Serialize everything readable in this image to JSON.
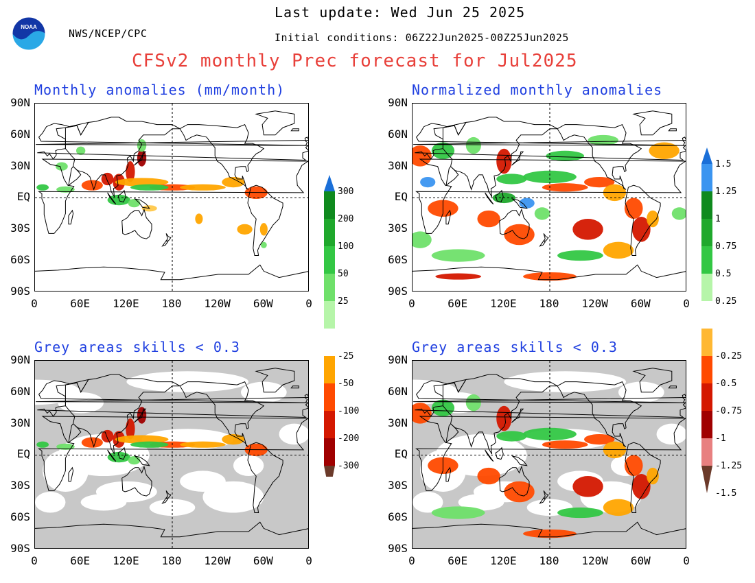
{
  "header": {
    "org": "NWS/NCEP/CPC",
    "last_update": "Last update: Wed Jun 25 2025",
    "init_conditions": "Initial conditions: 06Z22Jun2025-00Z25Jun2025",
    "title": "CFSv2 monthly Prec forecast for Jul2025"
  },
  "panels": [
    {
      "id": "tl",
      "title": "Monthly anomalies (mm/month)",
      "grey": false
    },
    {
      "id": "tr",
      "title": "Normalized monthly anomalies",
      "grey": false
    },
    {
      "id": "bl",
      "title": "Grey areas skills < 0.3",
      "grey": true
    },
    {
      "id": "br",
      "title": "Grey areas skills < 0.3",
      "grey": true
    }
  ],
  "axes": {
    "lat_labels": [
      "90N",
      "60N",
      "30N",
      "EQ",
      "30S",
      "60S",
      "90S"
    ],
    "lon_labels": [
      "0",
      "60E",
      "120E",
      "180",
      "120W",
      "60W",
      "0"
    ]
  },
  "colorbar_left": {
    "labels": [
      "300",
      "200",
      "100",
      "50",
      "25",
      "-25",
      "-50",
      "-100",
      "-200",
      "-300"
    ],
    "colors": [
      "#1a6fd8",
      "#0f8a1e",
      "#1fa82c",
      "#33c744",
      "#6fe06a",
      "#b6f5a9",
      "#ffffff",
      "#ffa500",
      "#ff4a00",
      "#d41800",
      "#a00000",
      "#6b3a2a"
    ]
  },
  "colorbar_right": {
    "labels": [
      "1.5",
      "1.25",
      "1",
      "0.75",
      "0.5",
      "0.25",
      "-0.25",
      "-0.5",
      "-0.75",
      "-1",
      "-1.25",
      "-1.5"
    ],
    "colors": [
      "#1a6fd8",
      "#3b95f0",
      "#0f8a1e",
      "#1fa82c",
      "#33c744",
      "#b6f5a9",
      "#ffffff",
      "#ffb833",
      "#ff4a00",
      "#d41800",
      "#a00000",
      "#e88080",
      "#6b3a2a"
    ]
  },
  "colors": {
    "title": "#e8403a",
    "panel_title": "#1f3fe0",
    "grey_mask": "#c8c8c8"
  }
}
